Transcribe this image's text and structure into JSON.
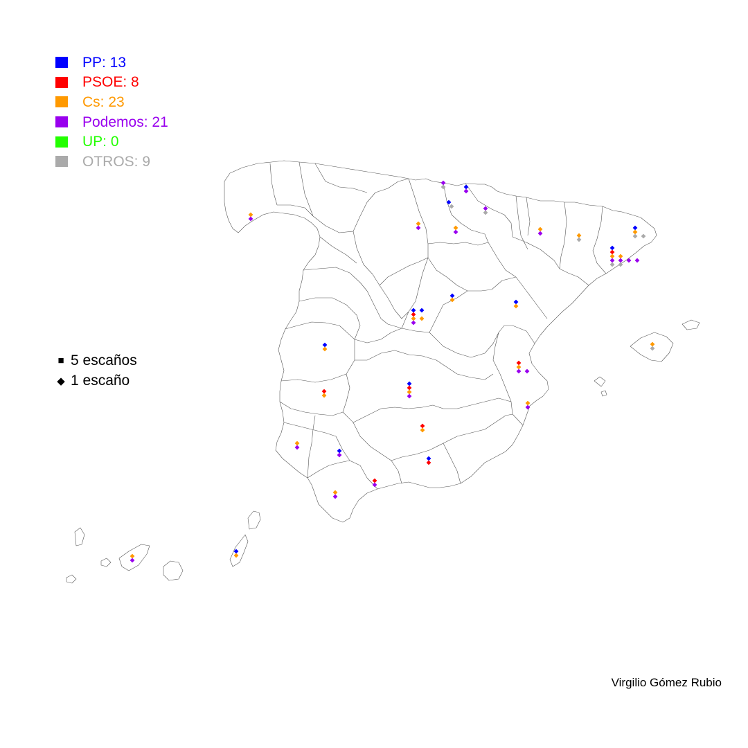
{
  "legend": {
    "parties": [
      {
        "label": "PP: 13",
        "color": "#0000FF"
      },
      {
        "label": "PSOE: 8",
        "color": "#FF0000"
      },
      {
        "label": "Cs: 23",
        "color": "#FF9900"
      },
      {
        "label": "Podemos: 21",
        "color": "#9900EE"
      },
      {
        "label": "UP: 0",
        "color": "#22FF00"
      },
      {
        "label": "OTROS: 9",
        "color": "#AAAAAA"
      }
    ],
    "seat_scale": [
      {
        "symbol": "■",
        "label": "5 escaños"
      },
      {
        "symbol": "◆",
        "label": "1 escaño"
      }
    ]
  },
  "credit": "Virgilio Gómez Rubio",
  "map": {
    "region": "Spain provinces",
    "markers": [
      {
        "party": "Cs",
        "seats": 1
      },
      {
        "party": "Podemos",
        "seats": 1
      },
      {
        "party": "Podemos",
        "seats": 1
      },
      {
        "party": "OTROS",
        "seats": 1
      },
      {
        "party": "PP",
        "seats": 1
      },
      {
        "party": "Podemos",
        "seats": 1
      },
      {
        "party": "PP",
        "seats": 1
      },
      {
        "party": "OTROS",
        "seats": 1
      },
      {
        "party": "Podemos",
        "seats": 1
      },
      {
        "party": "OTROS",
        "seats": 1
      },
      {
        "party": "Cs",
        "seats": 1
      },
      {
        "party": "Podemos",
        "seats": 1
      },
      {
        "party": "Cs",
        "seats": 1
      },
      {
        "party": "Podemos",
        "seats": 1
      },
      {
        "party": "Cs",
        "seats": 1
      },
      {
        "party": "Podemos",
        "seats": 1
      },
      {
        "party": "Cs",
        "seats": 1
      },
      {
        "party": "OTROS",
        "seats": 1
      },
      {
        "party": "PP",
        "seats": 1
      },
      {
        "party": "Cs",
        "seats": 1
      },
      {
        "party": "OTROS",
        "seats": 1
      },
      {
        "party": "OTROS",
        "seats": 1
      },
      {
        "party": "PP",
        "seats": 1
      },
      {
        "party": "PSOE",
        "seats": 1
      },
      {
        "party": "Cs",
        "seats": 1
      },
      {
        "party": "Podemos",
        "seats": 1
      },
      {
        "party": "OTROS",
        "seats": 1
      },
      {
        "party": "Cs",
        "seats": 1
      },
      {
        "party": "Podemos",
        "seats": 1
      },
      {
        "party": "OTROS",
        "seats": 1
      },
      {
        "party": "Podemos",
        "seats": 1
      },
      {
        "party": "Podemos",
        "seats": 1
      },
      {
        "party": "PP",
        "seats": 1
      },
      {
        "party": "Cs",
        "seats": 1
      },
      {
        "party": "PP",
        "seats": 1
      },
      {
        "party": "Cs",
        "seats": 1
      },
      {
        "party": "PP",
        "seats": 1
      },
      {
        "party": "PSOE",
        "seats": 1
      },
      {
        "party": "Cs",
        "seats": 1
      },
      {
        "party": "Podemos",
        "seats": 1
      },
      {
        "party": "PP",
        "seats": 1
      },
      {
        "party": "Cs",
        "seats": 1
      },
      {
        "party": "PP",
        "seats": 1
      },
      {
        "party": "Cs",
        "seats": 1
      },
      {
        "party": "PSOE",
        "seats": 1
      },
      {
        "party": "Cs",
        "seats": 1
      },
      {
        "party": "Podemos",
        "seats": 1
      },
      {
        "party": "Podemos",
        "seats": 1
      },
      {
        "party": "PSOE",
        "seats": 1
      },
      {
        "party": "Cs",
        "seats": 1
      },
      {
        "party": "PP",
        "seats": 1
      },
      {
        "party": "PSOE",
        "seats": 1
      },
      {
        "party": "Cs",
        "seats": 1
      },
      {
        "party": "Podemos",
        "seats": 1
      },
      {
        "party": "Cs",
        "seats": 1
      },
      {
        "party": "Podemos",
        "seats": 1
      },
      {
        "party": "PSOE",
        "seats": 1
      },
      {
        "party": "Cs",
        "seats": 1
      },
      {
        "party": "Cs",
        "seats": 1
      },
      {
        "party": "Podemos",
        "seats": 1
      },
      {
        "party": "PP",
        "seats": 1
      },
      {
        "party": "Podemos",
        "seats": 1
      },
      {
        "party": "PP",
        "seats": 1
      },
      {
        "party": "PSOE",
        "seats": 1
      },
      {
        "party": "PSOE",
        "seats": 1
      },
      {
        "party": "Podemos",
        "seats": 1
      },
      {
        "party": "Cs",
        "seats": 1
      },
      {
        "party": "Podemos",
        "seats": 1
      },
      {
        "party": "Cs",
        "seats": 1
      },
      {
        "party": "OTROS",
        "seats": 1
      },
      {
        "party": "PP",
        "seats": 1
      },
      {
        "party": "Cs",
        "seats": 1
      },
      {
        "party": "Cs",
        "seats": 1
      },
      {
        "party": "Podemos",
        "seats": 1
      }
    ]
  }
}
